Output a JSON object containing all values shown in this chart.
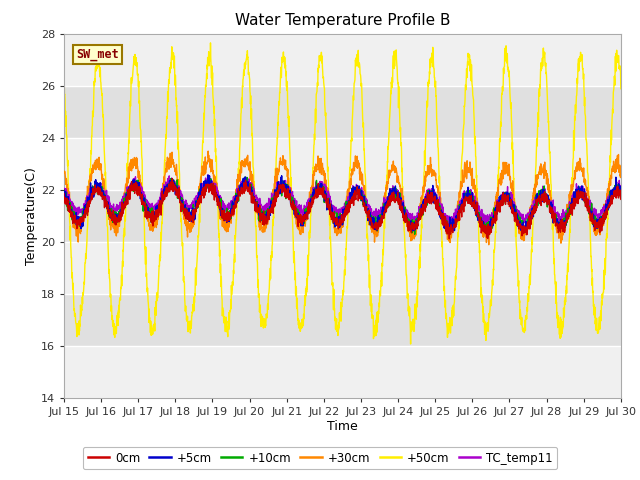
{
  "title": "Water Temperature Profile B",
  "xlabel": "Time",
  "ylabel": "Temperature(C)",
  "ylim": [
    14,
    28
  ],
  "xlim": [
    0,
    15
  ],
  "xtick_labels": [
    "Jul 15",
    "Jul 16",
    "Jul 17",
    "Jul 18",
    "Jul 19",
    "Jul 20",
    "Jul 21",
    "Jul 22",
    "Jul 23",
    "Jul 24",
    "Jul 25",
    "Jul 26",
    "Jul 27",
    "Jul 28",
    "Jul 29",
    "Jul 30"
  ],
  "ytick_values": [
    14,
    16,
    18,
    20,
    22,
    24,
    26,
    28
  ],
  "line_colors": {
    "0cm": "#cc0000",
    "+5cm": "#0000cc",
    "+10cm": "#00aa00",
    "+30cm": "#ff8800",
    "+50cm": "#ffee00",
    "TC_temp11": "#aa00cc"
  },
  "legend_labels": [
    "0cm",
    "+5cm",
    "+10cm",
    "+30cm",
    "+50cm",
    "TC_temp11"
  ],
  "sw_met_label": "SW_met",
  "sw_met_text_color": "#880000",
  "sw_met_bg": "#ffffcc",
  "sw_met_border": "#997700",
  "plot_bg_light": "#f0f0f0",
  "plot_bg_dark": "#e0e0e0",
  "title_fontsize": 11,
  "axis_fontsize": 9,
  "tick_fontsize": 8,
  "n_days": 15,
  "pts_per_day": 144,
  "amp_50": 5.2,
  "base_50": 21.5,
  "amp_30": 1.3,
  "base_30": 21.7,
  "amp_0": 0.6,
  "base_0": 21.3,
  "amp_5": 0.65,
  "base_5": 21.4,
  "amp_10": 0.62,
  "base_10": 21.4,
  "amp_tc": 0.5,
  "base_tc": 21.6
}
